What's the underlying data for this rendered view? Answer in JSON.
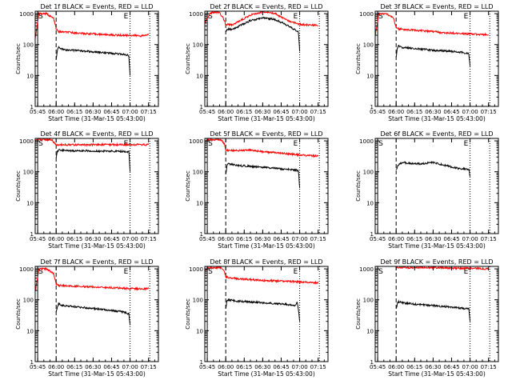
{
  "figure": {
    "colors": {
      "events": "#000000",
      "lld": "#ff0000",
      "axes": "#000000"
    },
    "y_axis_label": "Counts/sec",
    "x_axis_label": "Start Time (31-Mar-15 05:43:00)",
    "x_tick_labels": [
      "05:45",
      "06:00",
      "06:15",
      "06:30",
      "06:45",
      "07:00",
      "07:15"
    ],
    "y_tick_labels": [
      "1",
      "10",
      "100",
      "1000"
    ],
    "marker_labels": [
      "S",
      "E"
    ]
  },
  "chart_data": [
    {
      "type": "line",
      "title": "Det 1f BLACK = Events, RED = LLD",
      "xlabel": "Start Time (31-Mar-15 05:43:00)",
      "ylabel": "Counts/sec",
      "xlim": [
        "05:43",
        "07:23"
      ],
      "ylim": [
        1,
        1200
      ],
      "yscale": "log",
      "markers": {
        "solid": "05:45",
        "dashed": "06:00",
        "dotted": [
          "07:00",
          "07:16"
        ]
      },
      "series": [
        {
          "color": "#ff0000",
          "x": [
            "05:43",
            "05:46",
            "05:48",
            "05:52",
            "05:58",
            "06:00",
            "06:02",
            "06:10",
            "06:20",
            "06:30",
            "06:40",
            "06:50",
            "07:00",
            "07:10",
            "07:15"
          ],
          "y": [
            150,
            1000,
            1000,
            1000,
            700,
            320,
            260,
            250,
            230,
            220,
            210,
            200,
            200,
            190,
            210
          ]
        },
        {
          "color": "#000000",
          "x": [
            "06:00",
            "06:01",
            "06:02",
            "06:05",
            "06:15",
            "06:30",
            "06:45",
            "06:55",
            "06:59",
            "07:00"
          ],
          "y": [
            35,
            65,
            80,
            70,
            65,
            58,
            52,
            48,
            44,
            10
          ]
        }
      ]
    },
    {
      "type": "line",
      "title": "Det 2f BLACK = Events, RED = LLD",
      "xlabel": "Start Time (31-Mar-15 05:43:00)",
      "ylabel": "Counts/sec",
      "xlim": [
        "05:43",
        "07:23"
      ],
      "ylim": [
        1,
        1200
      ],
      "yscale": "log",
      "markers": {
        "solid": "05:45",
        "dashed": "06:00",
        "dotted": [
          "07:00",
          "07:16"
        ]
      },
      "series": [
        {
          "color": "#ff0000",
          "x": [
            "05:43",
            "05:47",
            "05:50",
            "05:55",
            "05:58",
            "06:00",
            "06:05",
            "06:10",
            "06:20",
            "06:30",
            "06:40",
            "06:50",
            "07:00",
            "07:10",
            "07:15"
          ],
          "y": [
            500,
            1000,
            1100,
            1100,
            700,
            450,
            430,
            550,
            900,
            1150,
            1000,
            600,
            450,
            420,
            420
          ]
        },
        {
          "color": "#000000",
          "x": [
            "06:00",
            "06:01",
            "06:05",
            "06:10",
            "06:20",
            "06:30",
            "06:40",
            "06:50",
            "06:59",
            "07:00"
          ],
          "y": [
            250,
            320,
            310,
            380,
            600,
            730,
            650,
            420,
            260,
            60
          ]
        }
      ]
    },
    {
      "type": "line",
      "title": "Det 3f BLACK = Events, RED = LLD",
      "xlabel": "Start Time (31-Mar-15 05:43:00)",
      "ylabel": "Counts/sec",
      "xlim": [
        "05:43",
        "07:23"
      ],
      "ylim": [
        1,
        1200
      ],
      "yscale": "log",
      "markers": {
        "solid": "05:45",
        "dashed": "06:00",
        "dotted": [
          "07:00",
          "07:16"
        ]
      },
      "series": [
        {
          "color": "#ff0000",
          "x": [
            "05:43",
            "05:46",
            "05:48",
            "05:52",
            "05:58",
            "06:00",
            "06:02",
            "06:10",
            "06:20",
            "06:30",
            "06:40",
            "06:50",
            "07:00",
            "07:10",
            "07:15"
          ],
          "y": [
            200,
            1000,
            1000,
            1000,
            700,
            350,
            320,
            300,
            280,
            260,
            240,
            230,
            220,
            210,
            210
          ]
        },
        {
          "color": "#000000",
          "x": [
            "06:00",
            "06:01",
            "06:02",
            "06:05",
            "06:15",
            "06:30",
            "06:45",
            "06:55",
            "06:59",
            "07:00"
          ],
          "y": [
            40,
            75,
            90,
            80,
            75,
            65,
            60,
            55,
            50,
            20
          ]
        }
      ]
    },
    {
      "type": "line",
      "title": "Det 4f BLACK = Events, RED = LLD",
      "xlabel": "Start Time (31-Mar-15 05:43:00)",
      "ylabel": "Counts/sec",
      "xlim": [
        "05:43",
        "07:23"
      ],
      "ylim": [
        1,
        1200
      ],
      "yscale": "log",
      "markers": {
        "solid": "05:45",
        "dashed": "06:00",
        "dotted": [
          "07:00",
          "07:16"
        ]
      },
      "series": [
        {
          "color": "#ff0000",
          "x": [
            "05:43",
            "05:46",
            "05:50",
            "05:56",
            "05:59",
            "06:00",
            "06:05",
            "06:30",
            "07:00",
            "07:15"
          ],
          "y": [
            1000,
            1100,
            1100,
            1100,
            850,
            750,
            750,
            750,
            750,
            750
          ]
        },
        {
          "color": "#000000",
          "x": [
            "06:00",
            "06:01",
            "06:02",
            "06:10",
            "06:30",
            "06:50",
            "06:59",
            "07:00"
          ],
          "y": [
            300,
            450,
            500,
            480,
            470,
            460,
            450,
            100
          ]
        }
      ]
    },
    {
      "type": "line",
      "title": "Det 5f BLACK = Events, RED = LLD",
      "xlabel": "Start Time (31-Mar-15 05:43:00)",
      "ylabel": "Counts/sec",
      "xlim": [
        "05:43",
        "07:23"
      ],
      "ylim": [
        1,
        1200
      ],
      "yscale": "log",
      "markers": {
        "solid": "05:45",
        "dashed": "06:00",
        "dotted": [
          "07:00",
          "07:16"
        ]
      },
      "series": [
        {
          "color": "#ff0000",
          "x": [
            "05:43",
            "05:46",
            "05:50",
            "05:56",
            "05:59",
            "06:00",
            "06:05",
            "06:20",
            "06:30",
            "06:45",
            "07:00",
            "07:15"
          ],
          "y": [
            1000,
            1100,
            1100,
            1100,
            800,
            500,
            480,
            500,
            450,
            400,
            350,
            320
          ]
        },
        {
          "color": "#000000",
          "x": [
            "06:00",
            "06:01",
            "06:02",
            "06:10",
            "06:30",
            "06:50",
            "06:59",
            "07:00"
          ],
          "y": [
            80,
            150,
            180,
            160,
            140,
            120,
            110,
            30
          ]
        }
      ]
    },
    {
      "type": "line",
      "title": "Det 6f BLACK = Events, RED = LLD",
      "xlabel": "Start Time (31-Mar-15 05:43:00)",
      "ylabel": "Counts/sec",
      "xlim": [
        "05:43",
        "07:23"
      ],
      "ylim": [
        1,
        1200
      ],
      "yscale": "log",
      "markers": {
        "solid": "05:45",
        "dashed": "06:00",
        "dotted": [
          "07:00",
          "07:16"
        ]
      },
      "series": [
        {
          "color": "#000000",
          "x": [
            "06:00",
            "06:02",
            "06:05",
            "06:10",
            "06:20",
            "06:30",
            "06:40",
            "06:50",
            "06:59",
            "07:00"
          ],
          "y": [
            120,
            170,
            200,
            190,
            180,
            200,
            160,
            130,
            120,
            70
          ]
        }
      ]
    },
    {
      "type": "line",
      "title": "Det 7f BLACK = Events, RED = LLD",
      "xlabel": "Start Time (31-Mar-15 05:43:00)",
      "ylabel": "Counts/sec",
      "xlim": [
        "05:43",
        "07:23"
      ],
      "ylim": [
        1,
        1200
      ],
      "yscale": "log",
      "markers": {
        "solid": "05:45",
        "dashed": "06:00",
        "dotted": [
          "07:00",
          "07:16"
        ]
      },
      "series": [
        {
          "color": "#ff0000",
          "x": [
            "05:43",
            "05:46",
            "05:48",
            "05:52",
            "05:58",
            "06:00",
            "06:02",
            "06:10",
            "06:20",
            "06:30",
            "06:40",
            "06:50",
            "07:00",
            "07:10",
            "07:15"
          ],
          "y": [
            180,
            1000,
            1000,
            1000,
            700,
            330,
            290,
            280,
            270,
            260,
            250,
            240,
            230,
            220,
            230
          ]
        },
        {
          "color": "#000000",
          "x": [
            "06:00",
            "06:01",
            "06:02",
            "06:05",
            "06:15",
            "06:30",
            "06:45",
            "06:55",
            "06:59",
            "07:00"
          ],
          "y": [
            40,
            60,
            75,
            65,
            60,
            52,
            45,
            40,
            35,
            15
          ]
        }
      ]
    },
    {
      "type": "line",
      "title": "Det 8f BLACK = Events, RED = LLD",
      "xlabel": "Start Time (31-Mar-15 05:43:00)",
      "ylabel": "Counts/sec",
      "xlim": [
        "05:43",
        "07:23"
      ],
      "ylim": [
        1,
        1200
      ],
      "yscale": "log",
      "markers": {
        "solid": "05:45",
        "dashed": "06:00",
        "dotted": [
          "07:00",
          "07:16"
        ]
      },
      "series": [
        {
          "color": "#ff0000",
          "x": [
            "05:43",
            "05:46",
            "05:50",
            "05:56",
            "05:59",
            "06:00",
            "06:05",
            "06:20",
            "06:30",
            "06:45",
            "07:00",
            "07:15"
          ],
          "y": [
            900,
            1100,
            1100,
            1100,
            800,
            550,
            500,
            450,
            420,
            400,
            380,
            350
          ]
        },
        {
          "color": "#000000",
          "x": [
            "06:00",
            "06:01",
            "06:02",
            "06:10",
            "06:30",
            "06:50",
            "06:56",
            "06:58",
            "06:59",
            "07:00"
          ],
          "y": [
            50,
            90,
            100,
            90,
            80,
            70,
            65,
            80,
            50,
            20
          ]
        }
      ]
    },
    {
      "type": "line",
      "title": "Det 9f BLACK = Events, RED = LLD",
      "xlabel": "Start Time (31-Mar-15 05:43:00)",
      "ylabel": "Counts/sec",
      "xlim": [
        "05:43",
        "07:23"
      ],
      "ylim": [
        1,
        1200
      ],
      "yscale": "log",
      "markers": {
        "solid": "05:45",
        "dashed": "06:00",
        "dotted": [
          "07:00",
          "07:16"
        ]
      },
      "series": [
        {
          "color": "#ff0000",
          "x": [
            "06:00",
            "06:15",
            "06:30",
            "06:45",
            "07:00",
            "07:15"
          ],
          "y": [
            1100,
            1100,
            1100,
            1050,
            1050,
            1000
          ]
        },
        {
          "color": "#000000",
          "x": [
            "06:00",
            "06:01",
            "06:02",
            "06:10",
            "06:30",
            "06:50",
            "06:59",
            "07:00"
          ],
          "y": [
            50,
            75,
            85,
            75,
            65,
            55,
            50,
            20
          ]
        }
      ]
    }
  ]
}
